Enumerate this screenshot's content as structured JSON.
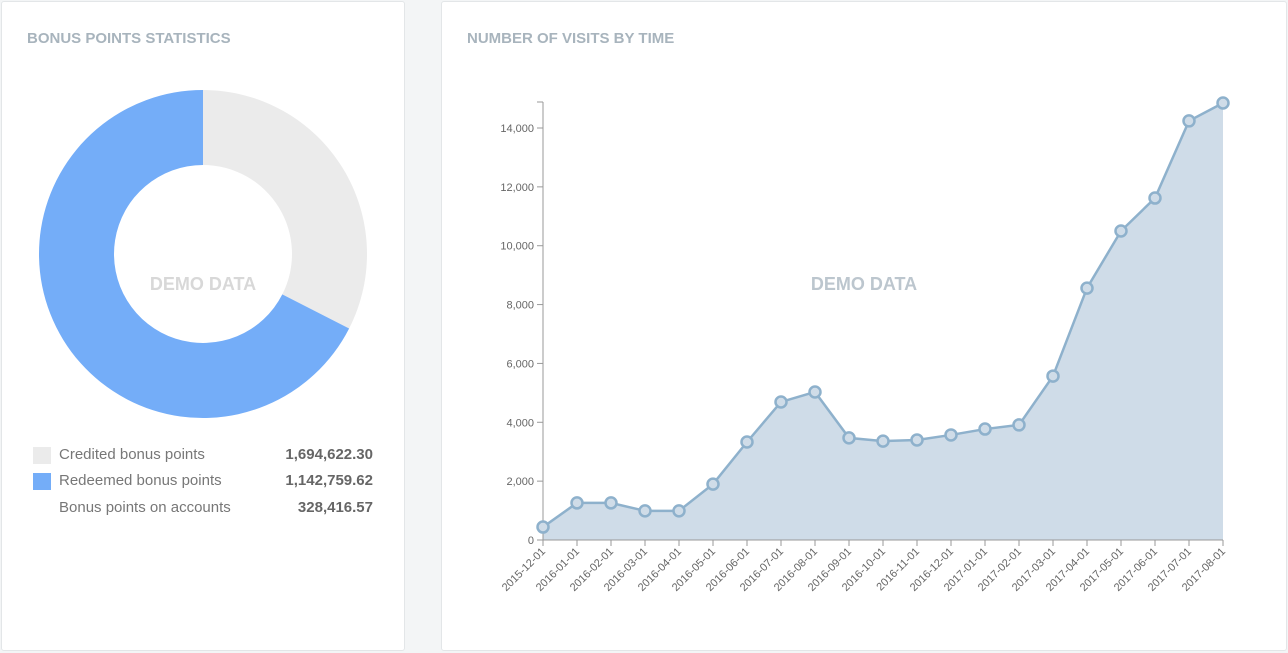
{
  "bonus": {
    "title": "BONUS POINTS STATISTICS",
    "watermark": "DEMO DATA",
    "legend": [
      {
        "label": "Credited bonus points",
        "value": "1,694,622.30",
        "color": "#ebebeb"
      },
      {
        "label": "Redeemed bonus points",
        "value": "1,142,759.62",
        "color": "#74adf8"
      },
      {
        "label": "Bonus points on accounts",
        "value": "328,416.57",
        "color": ""
      }
    ]
  },
  "visits": {
    "title": "NUMBER OF VISITS BY TIME",
    "watermark": "DEMO DATA"
  },
  "chart_data": [
    {
      "type": "pie",
      "title": "BONUS POINTS STATISTICS",
      "donut": true,
      "slices": [
        {
          "name": "Credited bonus points",
          "percent": 32.5,
          "color": "#ebebeb"
        },
        {
          "name": "Redeemed bonus points",
          "percent": 67.5,
          "color": "#74adf8"
        }
      ]
    },
    {
      "type": "area",
      "title": "NUMBER OF VISITS BY TIME",
      "x": [
        "2015-12-01",
        "2016-01-01",
        "2016-02-01",
        "2016-03-01",
        "2016-04-01",
        "2016-05-01",
        "2016-06-01",
        "2016-07-01",
        "2016-08-01",
        "2016-09-01",
        "2016-10-01",
        "2016-11-01",
        "2016-12-01",
        "2017-01-01",
        "2017-02-01",
        "2017-03-01",
        "2017-04-01",
        "2017-05-01",
        "2017-06-01",
        "2017-07-01",
        "2017-08-01"
      ],
      "values": [
        440,
        1260,
        1260,
        990,
        990,
        1900,
        3330,
        4690,
        5030,
        3470,
        3360,
        3400,
        3570,
        3770,
        3910,
        5570,
        8560,
        10500,
        11620,
        14240,
        14850
      ],
      "yticks": [
        0,
        2000,
        4000,
        6000,
        8000,
        10000,
        12000,
        14000
      ],
      "ytick_labels": [
        "0",
        "2,000",
        "4,000",
        "6,000",
        "8,000",
        "10,000",
        "12,000",
        "14,000"
      ],
      "ylim": [
        0,
        14850
      ],
      "line_color": "#8eb1cc",
      "fill_color": "#cfdce8"
    }
  ]
}
